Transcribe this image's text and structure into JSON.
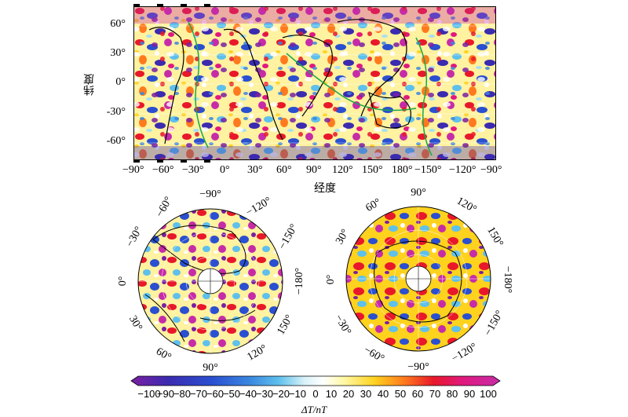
{
  "map": {
    "ylabel": "纬度",
    "xlabel": "经度",
    "lat_ticks": [
      "60°",
      "30°",
      "0°",
      "-30°",
      "-60°"
    ],
    "lon_ticks": [
      "−90°",
      "−60°",
      "−30°",
      "0°",
      "30°",
      "60°",
      "90°",
      "120°",
      "150°",
      "180°",
      "−150°",
      "−120°",
      "−90°"
    ]
  },
  "north_polar": {
    "labels": [
      "−90°",
      "−60°",
      "−120°",
      "−30°",
      "−150°",
      "0°",
      "−180°",
      "30°",
      "150°",
      "60°",
      "120°",
      "90°"
    ]
  },
  "south_polar": {
    "labels": [
      "90°",
      "60°",
      "120°",
      "30°",
      "150°",
      "0°",
      "−180°",
      "−30°",
      "−150°",
      "−60°",
      "−120°",
      "−90°"
    ]
  },
  "colorbar": {
    "label": "ΔT/nT",
    "ticks": [
      "−100",
      "−90",
      "−80",
      "−70",
      "−60",
      "−50",
      "−40",
      "−30",
      "−20",
      "−10",
      "0",
      "10",
      "20",
      "30",
      "40",
      "50",
      "60",
      "70",
      "80",
      "90",
      "100"
    ],
    "colors": [
      "#7a1fa2",
      "#3b2bb0",
      "#2a4fd0",
      "#3a86e0",
      "#5ec0ec",
      "#a8e0f0",
      "#ffffff",
      "#fff7a0",
      "#ffd21e",
      "#ff7a1e",
      "#e8182a",
      "#e0197f",
      "#c62ca8"
    ]
  }
}
